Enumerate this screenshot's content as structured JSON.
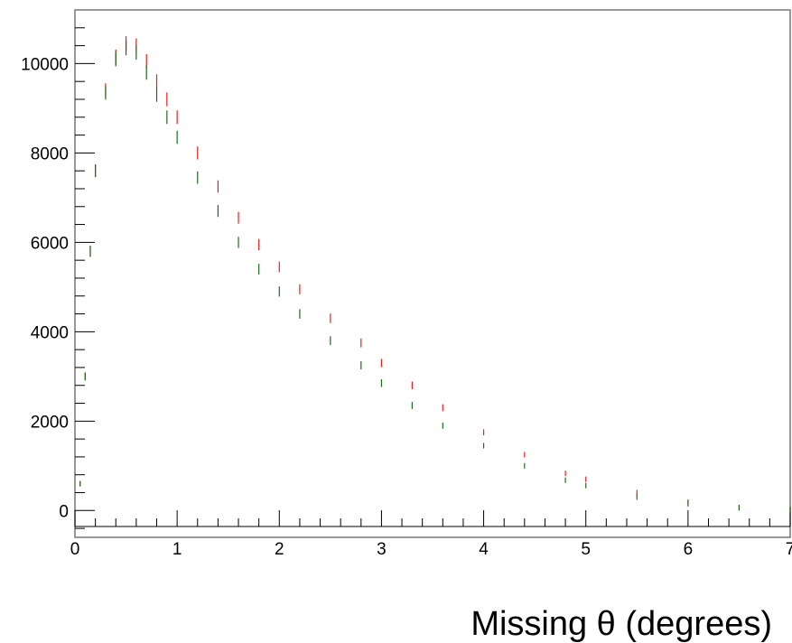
{
  "chart_data": {
    "type": "scatter",
    "title": "",
    "xlabel": "Missing θ (degrees)",
    "ylabel": "",
    "xlim": [
      0,
      7
    ],
    "ylim": [
      -600,
      11200
    ],
    "x_ticks": [
      0,
      1,
      2,
      3,
      4,
      5,
      6,
      7
    ],
    "x_tick_labels": [
      "0",
      "1",
      "2",
      "3",
      "4",
      "5",
      "6",
      "7"
    ],
    "y_ticks": [
      0,
      2000,
      4000,
      6000,
      8000,
      10000
    ],
    "y_tick_labels": [
      "0",
      "2000",
      "4000",
      "6000",
      "8000",
      "10000"
    ],
    "grid": false,
    "legend": "none",
    "series": [
      {
        "color": "#e8201a",
        "marker": "error-bar",
        "x": [
          0.05,
          0.1,
          0.15,
          0.2,
          0.3,
          0.4,
          0.5,
          0.6,
          0.7,
          0.8,
          0.9,
          1.0,
          1.2,
          1.4,
          1.6,
          1.8,
          2.0,
          2.2,
          2.5,
          2.8,
          3.0,
          3.3,
          3.6,
          4.0,
          4.4,
          4.8,
          5.0,
          5.5,
          6.0,
          6.5,
          7.0
        ],
        "y": [
          600,
          3000,
          5800,
          7600,
          9400,
          10150,
          10450,
          10400,
          10050,
          9600,
          9200,
          8800,
          8000,
          7250,
          6550,
          5950,
          5450,
          4950,
          4300,
          3750,
          3300,
          2800,
          2300,
          1750,
          1250,
          830,
          700,
          400,
          190,
          70,
          20
        ]
      },
      {
        "color": "#1e6b1e",
        "marker": "error-bar",
        "x": [
          0.05,
          0.1,
          0.15,
          0.2,
          0.3,
          0.4,
          0.5,
          0.6,
          0.7,
          0.8,
          0.9,
          1.0,
          1.2,
          1.4,
          1.6,
          1.8,
          2.0,
          2.2,
          2.5,
          2.8,
          3.0,
          3.3,
          3.6,
          4.0,
          4.4,
          4.8,
          5.0,
          5.5,
          6.0,
          6.5,
          7.0
        ],
        "y": [
          600,
          3000,
          5800,
          7600,
          9350,
          10100,
          10350,
          10250,
          9800,
          9300,
          8800,
          8350,
          7450,
          6700,
          6000,
          5400,
          4900,
          4400,
          3800,
          3250,
          2850,
          2350,
          1900,
          1450,
          1000,
          680,
          560,
          300,
          150,
          60,
          20
        ]
      }
    ]
  }
}
